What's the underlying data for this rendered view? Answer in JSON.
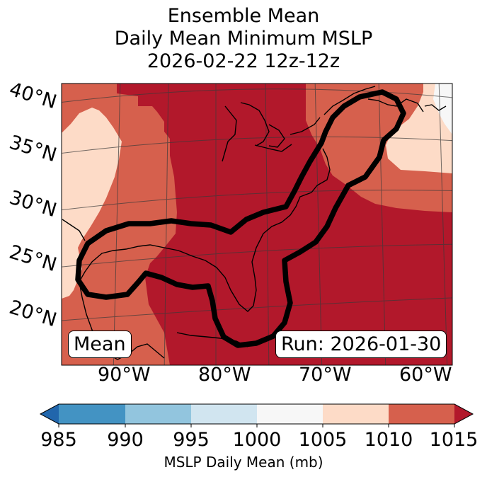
{
  "title": {
    "line1": "Ensemble Mean",
    "line2": "Daily Mean Minimum MSLP",
    "line3": "2026-02-22 12z-12z"
  },
  "map": {
    "lat_labels": [
      "40°N",
      "35°N",
      "30°N",
      "25°N",
      "20°N"
    ],
    "lon_labels": [
      "90°W",
      "80°W",
      "70°W",
      "60°W"
    ],
    "legend_left": "Mean",
    "legend_right": "Run: 2026-01-30",
    "colors": {
      "lt1015": "#b2182b",
      "lt1010": "#d6604d",
      "lt1005": "#fddbc7",
      "lt1000": "#f7f7f7",
      "contour": "#000000"
    }
  },
  "colorbar": {
    "ticks": [
      "985",
      "990",
      "995",
      "1000",
      "1005",
      "1010",
      "1015"
    ],
    "colors": [
      "#2166ac",
      "#4393c3",
      "#92c5de",
      "#d1e5f0",
      "#f7f7f7",
      "#fddbc7",
      "#d6604d",
      "#b2182b"
    ],
    "label": "MSLP Daily Mean (mb)"
  }
}
